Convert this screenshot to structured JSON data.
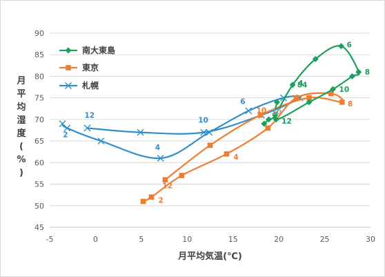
{
  "chart_data": {
    "type": "scatter",
    "title": "",
    "xlabel": "月平均気温(℃)",
    "ylabel": "月平均湿度(%)",
    "xlim": [
      -5,
      30
    ],
    "ylim": [
      45,
      90
    ],
    "x_ticks": [
      "-5",
      "0",
      "5",
      "10",
      "15",
      "20",
      "25",
      "30"
    ],
    "y_ticks": [
      "45",
      "50",
      "55",
      "60",
      "65",
      "70",
      "75",
      "80",
      "85",
      "90"
    ],
    "grid": true,
    "legend": "top-left",
    "series": [
      {
        "name": "南大東島",
        "color": "#1aa05a",
        "marker": "diamond",
        "points": [
          {
            "x": 18.4,
            "y": 69,
            "label": ""
          },
          {
            "x": 18.9,
            "y": 70,
            "label": ""
          },
          {
            "x": 19.6,
            "y": 71,
            "label": ""
          },
          {
            "x": 21.5,
            "y": 78,
            "label": "4"
          },
          {
            "x": 24.0,
            "y": 84,
            "label": ""
          },
          {
            "x": 26.8,
            "y": 87,
            "label": "6"
          },
          {
            "x": 28.7,
            "y": 81,
            "label": "8"
          },
          {
            "x": 28.0,
            "y": 80,
            "label": ""
          },
          {
            "x": 25.9,
            "y": 77,
            "label": "10"
          },
          {
            "x": 23.3,
            "y": 74,
            "label": ""
          },
          {
            "x": 19.7,
            "y": 70,
            "label": "12"
          },
          {
            "x": 19.8,
            "y": 74,
            "label": ""
          }
        ]
      },
      {
        "name": "東京",
        "color": "#ed7d31",
        "marker": "square",
        "points": [
          {
            "x": 5.2,
            "y": 51,
            "label": ""
          },
          {
            "x": 6.1,
            "y": 52,
            "label": "2"
          },
          {
            "x": 9.4,
            "y": 57,
            "label": ""
          },
          {
            "x": 14.3,
            "y": 62,
            "label": "4"
          },
          {
            "x": 18.8,
            "y": 68,
            "label": ""
          },
          {
            "x": 21.9,
            "y": 75,
            "label": ""
          },
          {
            "x": 25.7,
            "y": 76,
            "label": ""
          },
          {
            "x": 26.9,
            "y": 74,
            "label": "8"
          },
          {
            "x": 23.3,
            "y": 75,
            "label": ""
          },
          {
            "x": 18.0,
            "y": 71,
            "label": "10"
          },
          {
            "x": 12.5,
            "y": 64,
            "label": ""
          },
          {
            "x": 7.6,
            "y": 56,
            "label": "12"
          }
        ]
      },
      {
        "name": "札幌",
        "color": "#2e8ec9",
        "marker": "x",
        "points": [
          {
            "x": -3.6,
            "y": 69,
            "label": ""
          },
          {
            "x": -3.1,
            "y": 68,
            "label": "2"
          },
          {
            "x": 0.6,
            "y": 65,
            "label": ""
          },
          {
            "x": 7.1,
            "y": 61,
            "label": "4"
          },
          {
            "x": 12.4,
            "y": 67,
            "label": ""
          },
          {
            "x": 16.7,
            "y": 72,
            "label": "6"
          },
          {
            "x": 20.5,
            "y": 75,
            "label": ""
          },
          {
            "x": 22.3,
            "y": 75,
            "label": ""
          },
          {
            "x": 18.1,
            "y": 71,
            "label": ""
          },
          {
            "x": 11.8,
            "y": 67,
            "label": "10"
          },
          {
            "x": 4.9,
            "y": 67,
            "label": ""
          },
          {
            "x": -0.9,
            "y": 68,
            "label": "12"
          }
        ]
      }
    ]
  },
  "label_overlays": [
    "20",
    "84"
  ]
}
